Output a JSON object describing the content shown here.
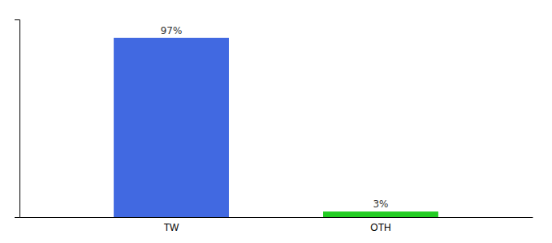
{
  "chart_data": {
    "type": "bar",
    "categories": [
      "TW",
      "OTH"
    ],
    "values": [
      97,
      3
    ],
    "value_labels": [
      "97%",
      "3%"
    ],
    "colors": [
      "#4169e1",
      "#22cc22"
    ],
    "data_labels": true,
    "ylim": [
      0,
      107
    ],
    "yticks": [],
    "tick_labels": "x",
    "grid": false
  }
}
